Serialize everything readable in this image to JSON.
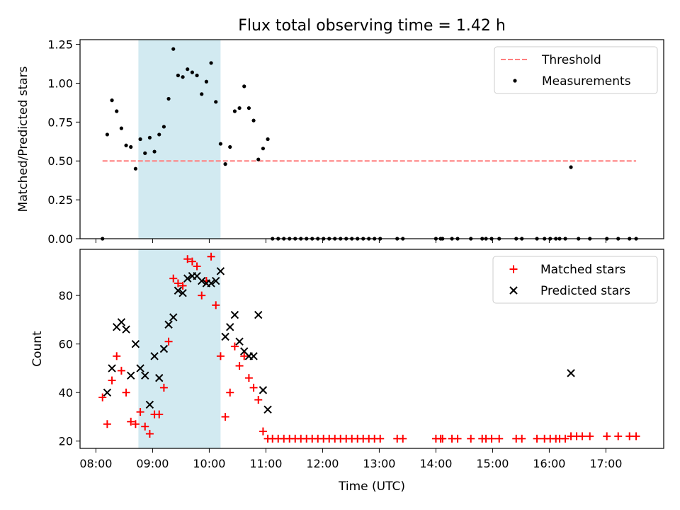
{
  "figure": {
    "title": "Flux total observing time = 1.42 h",
    "xlabel": "Time (UTC)"
  },
  "colors": {
    "threshold": "#ff7f7f",
    "measurement": "#000000",
    "matched": "#ff0000",
    "predicted": "#000000",
    "shade": "#add8e6"
  },
  "chart_data": [
    {
      "type": "scatter",
      "ylabel": "Matched/Predicted stars",
      "xlim_hours": [
        7.72,
        18.02
      ],
      "ylim": [
        0,
        1.28
      ],
      "yticks": [
        "0.00",
        "0.25",
        "0.50",
        "0.75",
        "1.00",
        "1.25"
      ],
      "xticks": [
        "08:00",
        "09:00",
        "10:00",
        "11:00",
        "12:00",
        "13:00",
        "14:00",
        "15:00",
        "16:00",
        "17:00"
      ],
      "shaded_interval": [
        "08:45",
        "10:12"
      ],
      "legend": [
        "Threshold",
        "Measurements"
      ],
      "legend_position": "upper right",
      "threshold": {
        "name": "Threshold",
        "y": 0.5,
        "x_range": [
          "08:07",
          "17:32"
        ]
      },
      "series": [
        {
          "name": "Measurements",
          "points": [
            [
              "08:07",
              0.0
            ],
            [
              "08:12",
              0.67
            ],
            [
              "08:17",
              0.89
            ],
            [
              "08:22",
              0.82
            ],
            [
              "08:27",
              0.71
            ],
            [
              "08:32",
              0.6
            ],
            [
              "08:37",
              0.59
            ],
            [
              "08:42",
              0.45
            ],
            [
              "08:47",
              0.64
            ],
            [
              "08:52",
              0.55
            ],
            [
              "08:57",
              0.65
            ],
            [
              "09:02",
              0.56
            ],
            [
              "09:07",
              0.67
            ],
            [
              "09:12",
              0.72
            ],
            [
              "09:17",
              0.9
            ],
            [
              "09:22",
              1.22
            ],
            [
              "09:27",
              1.05
            ],
            [
              "09:32",
              1.04
            ],
            [
              "09:37",
              1.09
            ],
            [
              "09:42",
              1.07
            ],
            [
              "09:47",
              1.05
            ],
            [
              "09:52",
              0.93
            ],
            [
              "09:57",
              1.01
            ],
            [
              "10:02",
              1.13
            ],
            [
              "10:07",
              0.88
            ],
            [
              "10:12",
              0.61
            ],
            [
              "10:17",
              0.48
            ],
            [
              "10:22",
              0.59
            ],
            [
              "10:27",
              0.82
            ],
            [
              "10:32",
              0.84
            ],
            [
              "10:37",
              0.98
            ],
            [
              "10:42",
              0.84
            ],
            [
              "10:47",
              0.76
            ],
            [
              "10:52",
              0.51
            ],
            [
              "10:57",
              0.58
            ],
            [
              "11:02",
              0.64
            ],
            [
              "11:07",
              0.0
            ],
            [
              "11:13",
              0.0
            ],
            [
              "11:19",
              0.0
            ],
            [
              "11:25",
              0.0
            ],
            [
              "11:31",
              0.0
            ],
            [
              "11:37",
              0.0
            ],
            [
              "11:43",
              0.0
            ],
            [
              "11:49",
              0.0
            ],
            [
              "11:55",
              0.0
            ],
            [
              "12:01",
              0.0
            ],
            [
              "12:07",
              0.0
            ],
            [
              "12:13",
              0.0
            ],
            [
              "12:19",
              0.0
            ],
            [
              "12:25",
              0.0
            ],
            [
              "12:31",
              0.0
            ],
            [
              "12:37",
              0.0
            ],
            [
              "12:43",
              0.0
            ],
            [
              "12:49",
              0.0
            ],
            [
              "12:55",
              0.0
            ],
            [
              "13:01",
              0.0
            ],
            [
              "13:19",
              0.0
            ],
            [
              "13:25",
              0.0
            ],
            [
              "14:00",
              0.0
            ],
            [
              "14:05",
              0.0
            ],
            [
              "14:07",
              0.0
            ],
            [
              "14:17",
              0.0
            ],
            [
              "14:23",
              0.0
            ],
            [
              "14:37",
              0.0
            ],
            [
              "14:49",
              0.0
            ],
            [
              "14:53",
              0.0
            ],
            [
              "14:59",
              0.0
            ],
            [
              "15:07",
              0.0
            ],
            [
              "15:25",
              0.0
            ],
            [
              "15:31",
              0.0
            ],
            [
              "15:47",
              0.0
            ],
            [
              "15:55",
              0.0
            ],
            [
              "16:01",
              0.0
            ],
            [
              "16:07",
              0.0
            ],
            [
              "16:11",
              0.0
            ],
            [
              "16:17",
              0.0
            ],
            [
              "16:23",
              0.46
            ],
            [
              "16:31",
              0.0
            ],
            [
              "16:43",
              0.0
            ],
            [
              "17:01",
              0.0
            ],
            [
              "17:13",
              0.0
            ],
            [
              "17:25",
              0.0
            ],
            [
              "17:32",
              0.0
            ]
          ]
        }
      ]
    },
    {
      "type": "scatter",
      "ylabel": "Count",
      "xlabel": "Time (UTC)",
      "xlim_hours": [
        7.72,
        18.02
      ],
      "ylim": [
        17,
        99
      ],
      "yticks": [
        "20",
        "40",
        "60",
        "80"
      ],
      "xticks": [
        "08:00",
        "09:00",
        "10:00",
        "11:00",
        "12:00",
        "13:00",
        "14:00",
        "15:00",
        "16:00",
        "17:00"
      ],
      "shaded_interval": [
        "08:45",
        "10:12"
      ],
      "legend": [
        "Matched stars",
        "Predicted stars"
      ],
      "legend_position": "upper right",
      "series": [
        {
          "name": "Matched stars",
          "points": [
            [
              "08:07",
              38
            ],
            [
              "08:12",
              27
            ],
            [
              "08:17",
              45
            ],
            [
              "08:22",
              55
            ],
            [
              "08:27",
              49
            ],
            [
              "08:32",
              40
            ],
            [
              "08:37",
              28
            ],
            [
              "08:42",
              27
            ],
            [
              "08:47",
              32
            ],
            [
              "08:52",
              26
            ],
            [
              "08:57",
              23
            ],
            [
              "09:02",
              31
            ],
            [
              "09:07",
              31
            ],
            [
              "09:12",
              42
            ],
            [
              "09:17",
              61
            ],
            [
              "09:22",
              87
            ],
            [
              "09:27",
              85
            ],
            [
              "09:32",
              84
            ],
            [
              "09:37",
              95
            ],
            [
              "09:42",
              94
            ],
            [
              "09:47",
              92
            ],
            [
              "09:52",
              80
            ],
            [
              "09:57",
              86
            ],
            [
              "10:02",
              96
            ],
            [
              "10:07",
              76
            ],
            [
              "10:12",
              55
            ],
            [
              "10:17",
              30
            ],
            [
              "10:22",
              40
            ],
            [
              "10:27",
              59
            ],
            [
              "10:32",
              51
            ],
            [
              "10:37",
              55
            ],
            [
              "10:42",
              46
            ],
            [
              "10:47",
              42
            ],
            [
              "10:52",
              37
            ],
            [
              "10:57",
              24
            ],
            [
              "11:02",
              21
            ],
            [
              "11:07",
              21
            ],
            [
              "11:13",
              21
            ],
            [
              "11:19",
              21
            ],
            [
              "11:25",
              21
            ],
            [
              "11:31",
              21
            ],
            [
              "11:37",
              21
            ],
            [
              "11:43",
              21
            ],
            [
              "11:49",
              21
            ],
            [
              "11:55",
              21
            ],
            [
              "12:01",
              21
            ],
            [
              "12:07",
              21
            ],
            [
              "12:13",
              21
            ],
            [
              "12:19",
              21
            ],
            [
              "12:25",
              21
            ],
            [
              "12:31",
              21
            ],
            [
              "12:37",
              21
            ],
            [
              "12:43",
              21
            ],
            [
              "12:49",
              21
            ],
            [
              "12:55",
              21
            ],
            [
              "13:01",
              21
            ],
            [
              "13:19",
              21
            ],
            [
              "13:25",
              21
            ],
            [
              "14:00",
              21
            ],
            [
              "14:05",
              21
            ],
            [
              "14:07",
              21
            ],
            [
              "14:17",
              21
            ],
            [
              "14:23",
              21
            ],
            [
              "14:37",
              21
            ],
            [
              "14:49",
              21
            ],
            [
              "14:53",
              21
            ],
            [
              "14:59",
              21
            ],
            [
              "15:07",
              21
            ],
            [
              "15:25",
              21
            ],
            [
              "15:31",
              21
            ],
            [
              "15:47",
              21
            ],
            [
              "15:55",
              21
            ],
            [
              "16:01",
              21
            ],
            [
              "16:07",
              21
            ],
            [
              "16:11",
              21
            ],
            [
              "16:17",
              21
            ],
            [
              "16:23",
              22
            ],
            [
              "16:29",
              22
            ],
            [
              "16:35",
              22
            ],
            [
              "16:43",
              22
            ],
            [
              "17:01",
              22
            ],
            [
              "17:13",
              22
            ],
            [
              "17:25",
              22
            ],
            [
              "17:32",
              22
            ]
          ]
        },
        {
          "name": "Predicted stars",
          "points": [
            [
              "08:12",
              40
            ],
            [
              "08:17",
              50
            ],
            [
              "08:22",
              67
            ],
            [
              "08:27",
              69
            ],
            [
              "08:32",
              66
            ],
            [
              "08:37",
              47
            ],
            [
              "08:42",
              60
            ],
            [
              "08:47",
              50
            ],
            [
              "08:52",
              47
            ],
            [
              "08:57",
              35
            ],
            [
              "09:02",
              55
            ],
            [
              "09:07",
              46
            ],
            [
              "09:12",
              58
            ],
            [
              "09:17",
              68
            ],
            [
              "09:22",
              71
            ],
            [
              "09:27",
              82
            ],
            [
              "09:32",
              81
            ],
            [
              "09:37",
              87
            ],
            [
              "09:42",
              88
            ],
            [
              "09:47",
              88
            ],
            [
              "09:52",
              86
            ],
            [
              "09:57",
              85
            ],
            [
              "10:02",
              85
            ],
            [
              "10:07",
              86
            ],
            [
              "10:12",
              90
            ],
            [
              "10:17",
              63
            ],
            [
              "10:22",
              67
            ],
            [
              "10:27",
              72
            ],
            [
              "10:32",
              61
            ],
            [
              "10:37",
              57
            ],
            [
              "10:42",
              55
            ],
            [
              "10:47",
              55
            ],
            [
              "10:52",
              72
            ],
            [
              "10:57",
              41
            ],
            [
              "11:02",
              33
            ],
            [
              "16:23",
              48
            ]
          ]
        }
      ]
    }
  ]
}
